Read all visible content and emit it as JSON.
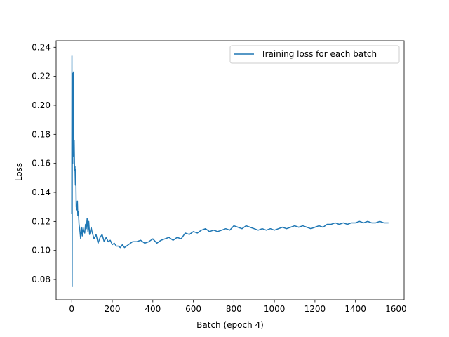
{
  "chart_data": {
    "type": "line",
    "title": "",
    "xlabel": "Batch (epoch 4)",
    "ylabel": "Loss",
    "xlim": [
      -77,
      1640
    ],
    "ylim": [
      0.066,
      0.2445
    ],
    "xticks": [
      0,
      200,
      400,
      600,
      800,
      1000,
      1200,
      1400,
      1600
    ],
    "xtick_labels": [
      "0",
      "200",
      "400",
      "600",
      "800",
      "1000",
      "1200",
      "1400",
      "1600"
    ],
    "yticks": [
      0.08,
      0.1,
      0.12,
      0.14,
      0.16,
      0.18,
      0.2,
      0.22,
      0.24
    ],
    "ytick_labels": [
      "0.08",
      "0.10",
      "0.12",
      "0.14",
      "0.16",
      "0.18",
      "0.20",
      "0.22",
      "0.24"
    ],
    "grid": false,
    "legend_position": "top-right",
    "series": [
      {
        "name": "Training loss for each batch",
        "color": "#1f77b4",
        "x": [
          0,
          1,
          2,
          3,
          4,
          5,
          6,
          7,
          8,
          9,
          10,
          12,
          14,
          16,
          18,
          20,
          22,
          25,
          28,
          30,
          33,
          36,
          40,
          44,
          48,
          52,
          56,
          60,
          64,
          68,
          72,
          76,
          80,
          84,
          88,
          92,
          96,
          100,
          110,
          120,
          130,
          140,
          150,
          160,
          170,
          180,
          190,
          200,
          210,
          220,
          230,
          240,
          250,
          260,
          270,
          280,
          290,
          300,
          320,
          340,
          360,
          380,
          400,
          420,
          440,
          460,
          480,
          500,
          520,
          540,
          560,
          580,
          600,
          620,
          640,
          660,
          680,
          700,
          720,
          740,
          760,
          780,
          800,
          820,
          840,
          860,
          880,
          900,
          920,
          940,
          960,
          980,
          1000,
          1020,
          1040,
          1060,
          1080,
          1100,
          1120,
          1140,
          1160,
          1180,
          1200,
          1220,
          1240,
          1260,
          1280,
          1300,
          1320,
          1340,
          1360,
          1380,
          1400,
          1420,
          1440,
          1460,
          1480,
          1500,
          1520,
          1540,
          1563
        ],
        "values": [
          0.125,
          0.234,
          0.075,
          0.19,
          0.222,
          0.16,
          0.205,
          0.17,
          0.223,
          0.19,
          0.165,
          0.176,
          0.155,
          0.158,
          0.145,
          0.156,
          0.13,
          0.128,
          0.134,
          0.124,
          0.127,
          0.118,
          0.114,
          0.108,
          0.116,
          0.11,
          0.116,
          0.113,
          0.112,
          0.118,
          0.115,
          0.122,
          0.113,
          0.12,
          0.111,
          0.113,
          0.116,
          0.113,
          0.108,
          0.111,
          0.105,
          0.109,
          0.111,
          0.106,
          0.109,
          0.106,
          0.107,
          0.104,
          0.105,
          0.103,
          0.103,
          0.102,
          0.104,
          0.102,
          0.103,
          0.104,
          0.105,
          0.106,
          0.106,
          0.107,
          0.105,
          0.106,
          0.108,
          0.105,
          0.107,
          0.108,
          0.109,
          0.107,
          0.109,
          0.108,
          0.112,
          0.111,
          0.113,
          0.112,
          0.114,
          0.115,
          0.113,
          0.114,
          0.113,
          0.114,
          0.115,
          0.114,
          0.117,
          0.116,
          0.115,
          0.117,
          0.116,
          0.115,
          0.114,
          0.115,
          0.114,
          0.115,
          0.114,
          0.115,
          0.116,
          0.115,
          0.116,
          0.117,
          0.116,
          0.117,
          0.116,
          0.115,
          0.116,
          0.117,
          0.116,
          0.118,
          0.118,
          0.119,
          0.118,
          0.119,
          0.118,
          0.119,
          0.119,
          0.12,
          0.119,
          0.12,
          0.119,
          0.119,
          0.12,
          0.119,
          0.119
        ]
      }
    ]
  }
}
